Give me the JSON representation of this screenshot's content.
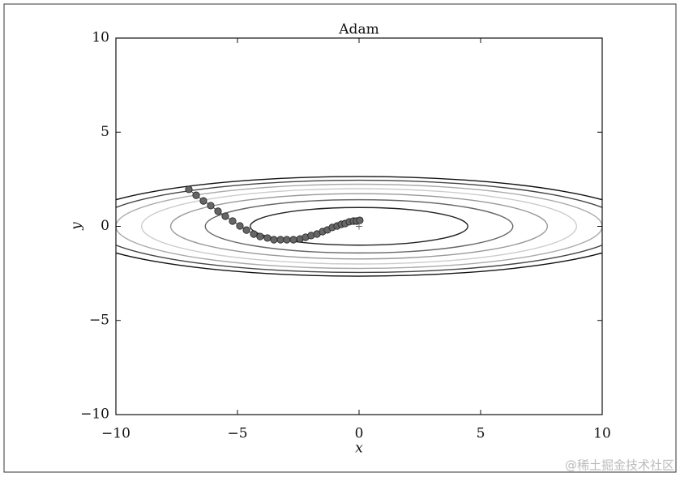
{
  "chart_data": {
    "type": "line",
    "title": "Adam",
    "x_label": "x",
    "y_label": "y",
    "xlim": [
      -10,
      10
    ],
    "ylim": [
      -10,
      10
    ],
    "xticks": [
      {
        "value": -10,
        "label": "−10"
      },
      {
        "value": -5,
        "label": "−5"
      },
      0,
      5,
      10
    ],
    "yticks": [
      {
        "value": -10,
        "label": "−10"
      },
      {
        "value": -5,
        "label": "−5"
      },
      0,
      5,
      10
    ],
    "contours": {
      "levels": [
        1,
        2,
        3,
        4,
        5,
        6,
        7
      ],
      "colors": [
        "#222222",
        "#666666",
        "#999999",
        "#cccccc",
        "#aaaaaa",
        "#444444",
        "#111111"
      ]
    },
    "optimum": {
      "x": 0,
      "y": 0
    },
    "color": "#666666",
    "x": [
      -7,
      -6.7,
      -6.4,
      -6.1,
      -5.8,
      -5.5,
      -5.2,
      -4.9,
      -4.63,
      -4.33,
      -4.07,
      -3.77,
      -3.5,
      -3.23,
      -2.97,
      -2.7,
      -2.43,
      -2.2,
      -1.97,
      -1.73,
      -1.5,
      -1.3,
      -1.1,
      -0.9,
      -0.73,
      -0.57,
      -0.4,
      -0.23,
      -0.1,
      0.03
    ],
    "values": [
      1.96,
      1.65,
      1.35,
      1.1,
      0.8,
      0.54,
      0.28,
      0.02,
      -0.2,
      -0.41,
      -0.54,
      -0.62,
      -0.71,
      -0.71,
      -0.71,
      -0.71,
      -0.67,
      -0.58,
      -0.49,
      -0.41,
      -0.28,
      -0.19,
      -0.06,
      0.02,
      0.11,
      0.15,
      0.24,
      0.28,
      0.28,
      0.32
    ]
  },
  "watermark": "@稀土掘金技术社区"
}
